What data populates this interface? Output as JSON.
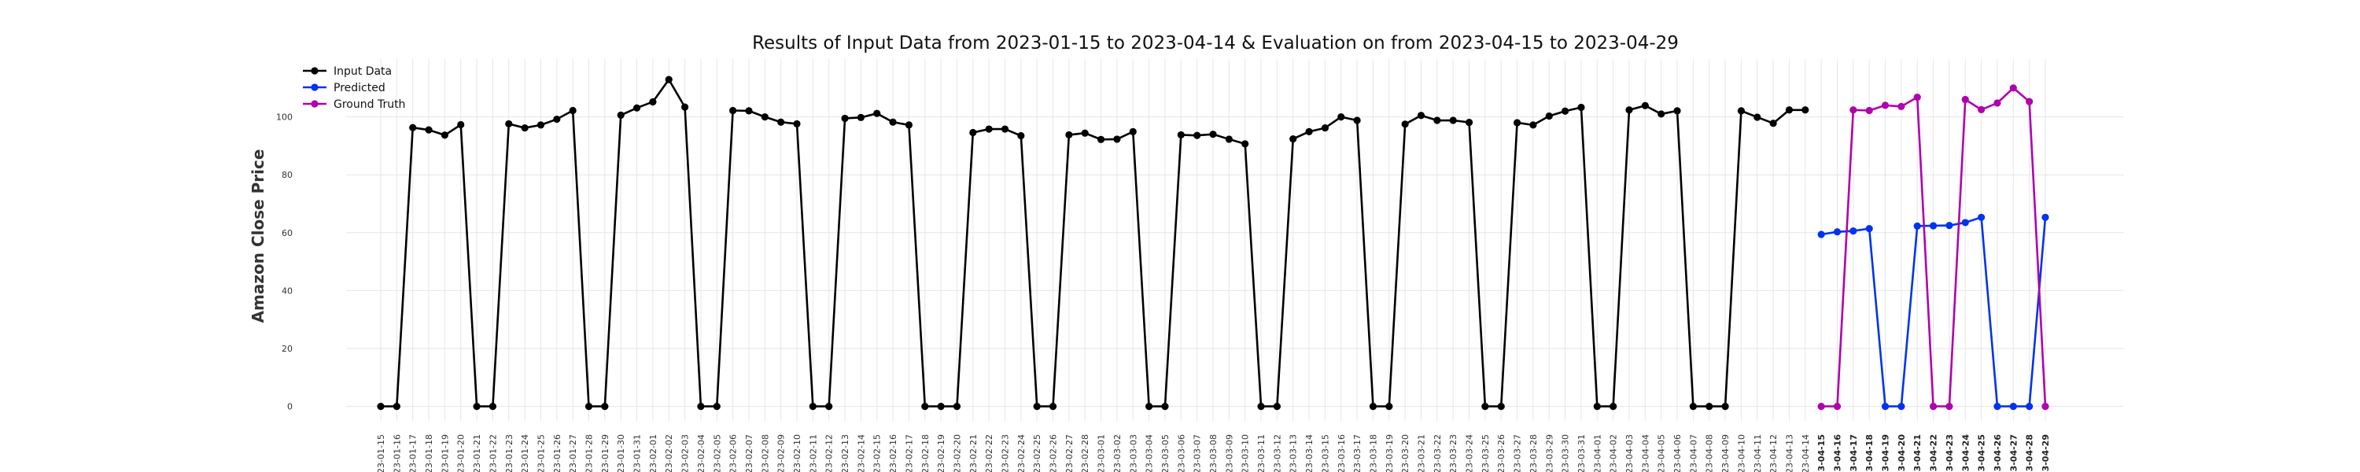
{
  "chart_data": {
    "type": "line",
    "title": "Results of Input Data from 2023-01-15 to 2023-04-14 & Evaluation on from 2023-04-15 to 2023-04-29",
    "xlabel": "",
    "ylabel": "Amazon Close Price",
    "ylim": [
      -5,
      120
    ],
    "yticks": [
      0,
      20,
      40,
      60,
      80,
      100
    ],
    "grid": true,
    "legend_position": "top-left",
    "series": [
      {
        "name": "Input Data",
        "color": "#000000",
        "start": "2023-01-15",
        "values": [
          0,
          0,
          96.3,
          95.5,
          93.7,
          97.3,
          0,
          0,
          97.6,
          96.2,
          97.2,
          99.2,
          102.2,
          0,
          0,
          100.6,
          103.1,
          105.2,
          112.9,
          103.4,
          0,
          0,
          102.2,
          102.1,
          100.0,
          98.2,
          97.6,
          0,
          0,
          99.5,
          99.8,
          101.2,
          98.2,
          97.2,
          0,
          0,
          0,
          94.6,
          95.8,
          95.8,
          93.5,
          0,
          0,
          93.8,
          94.4,
          92.2,
          92.3,
          94.9,
          0,
          0,
          93.8,
          93.6,
          94.0,
          92.3,
          90.7,
          0,
          0,
          92.4,
          94.9,
          96.2,
          100.0,
          98.8,
          0,
          0,
          97.5,
          100.5,
          98.8,
          98.8,
          98.1,
          0,
          0,
          98.0,
          97.2,
          100.3,
          102.0,
          103.3,
          0,
          0,
          102.4,
          103.9,
          101.0,
          102.1,
          0,
          0,
          0,
          102.1,
          99.9,
          97.8,
          102.4,
          102.4
        ]
      },
      {
        "name": "Predicted",
        "color": "#0033ee",
        "start": "2023-04-15",
        "values": [
          59.4,
          60.3,
          60.6,
          61.4,
          0,
          0,
          62.3,
          62.4,
          62.5,
          63.5,
          65.3,
          0,
          0,
          0,
          65.3
        ]
      },
      {
        "name": "Ground Truth",
        "color": "#b000b0",
        "start": "2023-04-15",
        "values": [
          0,
          0,
          102.4,
          102.2,
          104.0,
          103.6,
          106.8,
          0,
          0,
          106.0,
          102.5,
          104.8,
          110.0,
          105.3,
          0
        ]
      }
    ],
    "x_dates": {
      "start": "2023-01-15",
      "end": "2023-04-29",
      "tick_format": "YY-MM-DD",
      "bold_from": "2023-04-15"
    }
  }
}
